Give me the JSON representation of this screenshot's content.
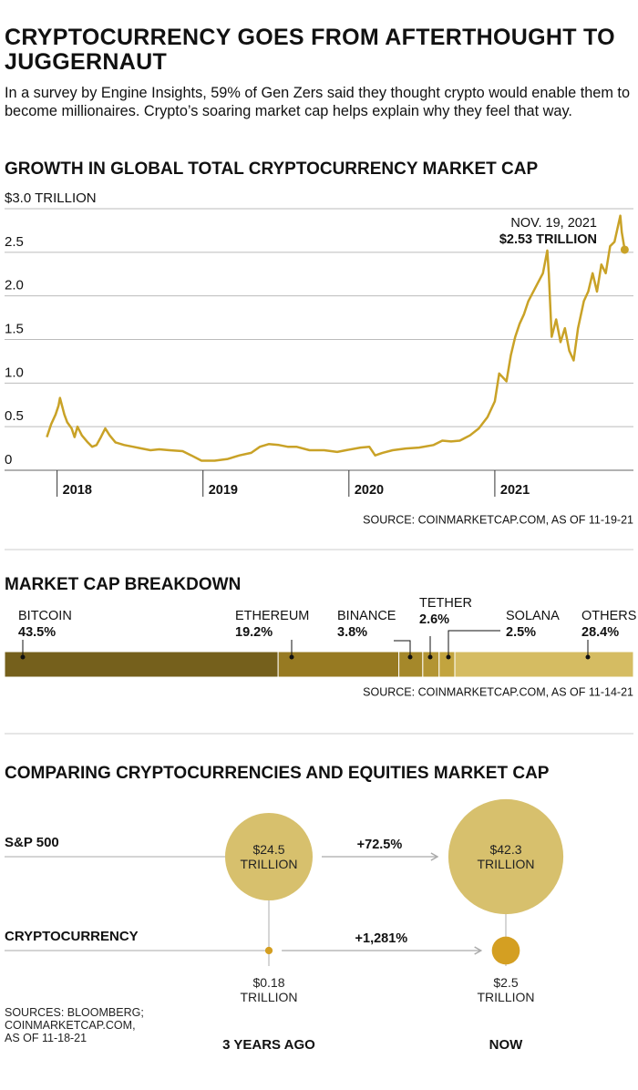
{
  "header": {
    "title": "CRYPTOCURRENCY GOES FROM AFTERTHOUGHT TO JUGGERNAUT",
    "subtitle": "In a survey by Engine Insights, 59% of Gen Zers said they thought crypto would enable them to become millionaires. Crypto’s soaring market cap helps explain why they feel that way."
  },
  "chart_data": [
    {
      "type": "line",
      "title": "GROWTH IN GLOBAL TOTAL CRYPTOCURRENCY MARKET CAP",
      "color": "#c9a227",
      "x": [
        2017.93,
        2017.96,
        2017.99,
        2018.01,
        2018.02,
        2018.05,
        2018.07,
        2018.1,
        2018.12,
        2018.14,
        2018.17,
        2018.21,
        2018.24,
        2018.27,
        2018.3,
        2018.33,
        2018.36,
        2018.4,
        2018.46,
        2018.52,
        2018.58,
        2018.64,
        2018.7,
        2018.77,
        2018.86,
        2018.92,
        2018.99,
        2019.08,
        2019.17,
        2019.25,
        2019.33,
        2019.39,
        2019.45,
        2019.52,
        2019.58,
        2019.64,
        2019.73,
        2019.83,
        2019.92,
        2019.98,
        2020.08,
        2020.14,
        2020.18,
        2020.23,
        2020.3,
        2020.39,
        2020.48,
        2020.58,
        2020.64,
        2020.7,
        2020.76,
        2020.83,
        2020.89,
        2020.95,
        2021.0,
        2021.03,
        2021.08,
        2021.11,
        2021.14,
        2021.17,
        2021.2,
        2021.23,
        2021.28,
        2021.33,
        2021.36,
        2021.37,
        2021.39,
        2021.42,
        2021.45,
        2021.48,
        2021.51,
        2021.54,
        2021.57,
        2021.61,
        2021.64,
        2021.67,
        2021.7,
        2021.73,
        2021.76,
        2021.79,
        2021.82,
        2021.86,
        2021.87,
        2021.89
      ],
      "values": [
        0.38,
        0.53,
        0.64,
        0.74,
        0.83,
        0.64,
        0.55,
        0.48,
        0.38,
        0.5,
        0.4,
        0.32,
        0.27,
        0.29,
        0.38,
        0.48,
        0.4,
        0.32,
        0.29,
        0.27,
        0.25,
        0.23,
        0.24,
        0.23,
        0.22,
        0.17,
        0.11,
        0.11,
        0.13,
        0.17,
        0.2,
        0.27,
        0.3,
        0.29,
        0.27,
        0.27,
        0.23,
        0.23,
        0.21,
        0.23,
        0.26,
        0.27,
        0.17,
        0.2,
        0.23,
        0.25,
        0.26,
        0.29,
        0.34,
        0.33,
        0.34,
        0.4,
        0.48,
        0.61,
        0.79,
        1.11,
        1.02,
        1.32,
        1.53,
        1.68,
        1.79,
        1.94,
        2.1,
        2.26,
        2.52,
        2.26,
        1.53,
        1.73,
        1.47,
        1.63,
        1.37,
        1.26,
        1.63,
        1.94,
        2.05,
        2.26,
        2.05,
        2.36,
        2.26,
        2.57,
        2.62,
        2.92,
        2.73,
        2.53
      ],
      "xlim": [
        2017.64,
        2021.95
      ],
      "xticks": [
        2018,
        2019,
        2020,
        2021
      ],
      "ylim": [
        0,
        3
      ],
      "yticks": [
        0,
        0.5,
        {
          "value": 1,
          "label": "1.0"
        },
        1.5,
        {
          "value": 2,
          "label": "2.0"
        },
        2.5,
        {
          "value": 3,
          "label": "$3.0 TRILLION"
        }
      ],
      "grid": true,
      "annotation": {
        "date": "NOV. 19, 2021",
        "label": "$2.53 TRILLION"
      },
      "source": "SOURCE: COINMARKETCAP.COM, AS OF 11-19-21"
    },
    {
      "type": "stacked-bar",
      "title": "MARKET CAP BREAKDOWN",
      "xlim": [
        0,
        100
      ],
      "series": [
        {
          "name": "BITCOIN",
          "color": "#75601c",
          "values": [
            43.5
          ],
          "value_labels": [
            "43.5%"
          ]
        },
        {
          "name": "ETHEREUM",
          "color": "#977a22",
          "values": [
            19.2
          ],
          "value_labels": [
            "19.2%"
          ]
        },
        {
          "name": "BINANCE",
          "color": "#a5882a",
          "values": [
            3.8
          ],
          "value_labels": [
            "3.8%"
          ]
        },
        {
          "name": "TETHER",
          "color": "#b39533",
          "values": [
            2.6
          ],
          "value_labels": [
            "2.6%"
          ]
        },
        {
          "name": "SOLANA",
          "color": "#c2a43e",
          "values": [
            2.5
          ],
          "value_labels": [
            "2.5%"
          ]
        },
        {
          "name": "OTHERS",
          "color": "#d5bc62",
          "values": [
            28.4
          ],
          "value_labels": [
            "28.4%"
          ]
        }
      ],
      "source": "SOURCE: COINMARKETCAP.COM, AS OF 11-14-21"
    },
    {
      "type": "bubble",
      "title": "COMPARING CRYPTOCURRENCIES AND EQUITIES MARKET CAP",
      "categories": [
        "3 YEARS AGO",
        "NOW"
      ],
      "series": [
        {
          "name": "S&P 500",
          "color": "#d7c06d",
          "values": [
            24.5,
            42.3
          ],
          "value_labels": [
            "$24.5 TRILLION",
            "$42.3 TRILLION"
          ],
          "change_label": "+72.5%"
        },
        {
          "name": "CRYPTOCURRENCY",
          "color": "#d49f22",
          "values": [
            0.18,
            2.5
          ],
          "value_labels": [
            "$0.18 TRILLION",
            "$2.5 TRILLION"
          ],
          "change_label": "+1,281%"
        }
      ],
      "source": "SOURCES: BLOOMBERG; COINMARKETCAP.COM, AS OF 11-18-21"
    }
  ]
}
